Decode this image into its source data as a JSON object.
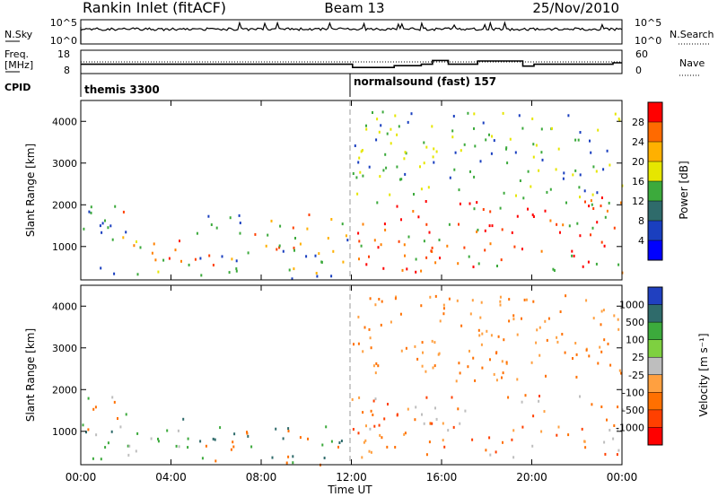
{
  "header": {
    "station": "Rankin Inlet (fitACF)",
    "beam": "Beam 13",
    "date": "25/Nov/2010"
  },
  "noise_panel": {
    "left_label": "N.Sky",
    "right_label": "N.Search",
    "ticks": [
      "10^5",
      "10^0"
    ]
  },
  "freq_panel": {
    "left_label_line1": "Freq.",
    "left_label_line2": "[MHz]",
    "left_ticks": [
      "18",
      "8"
    ],
    "right_label": "Nave",
    "right_ticks": [
      "60",
      "0"
    ],
    "freq_steps": [
      {
        "t": 0.0,
        "mhz": 12.0
      },
      {
        "t": 12.05,
        "mhz": 12.0
      },
      {
        "t": 12.05,
        "mhz": 10.6
      },
      {
        "t": 13.9,
        "mhz": 10.6
      },
      {
        "t": 13.9,
        "mhz": 11.4
      },
      {
        "t": 15.1,
        "mhz": 11.4
      },
      {
        "t": 15.1,
        "mhz": 12.0
      },
      {
        "t": 15.6,
        "mhz": 12.0
      },
      {
        "t": 15.6,
        "mhz": 13.6
      },
      {
        "t": 16.3,
        "mhz": 13.6
      },
      {
        "t": 16.3,
        "mhz": 12.0
      },
      {
        "t": 17.6,
        "mhz": 12.0
      },
      {
        "t": 17.6,
        "mhz": 13.4
      },
      {
        "t": 19.6,
        "mhz": 13.4
      },
      {
        "t": 19.6,
        "mhz": 11.2
      },
      {
        "t": 20.1,
        "mhz": 11.2
      },
      {
        "t": 20.1,
        "mhz": 12.0
      },
      {
        "t": 23.6,
        "mhz": 12.0
      },
      {
        "t": 23.6,
        "mhz": 12.6
      },
      {
        "t": 24.0,
        "mhz": 12.6
      }
    ]
  },
  "cpid": {
    "label": "CPID",
    "segments": [
      {
        "start": 0,
        "text": "themis 3300"
      },
      {
        "start": 12,
        "text": "normalsound (fast) 157"
      }
    ]
  },
  "chart_data": [
    {
      "type": "heatmap",
      "name": "power",
      "ylabel": "Slant Range [km]",
      "yticks": [
        1000,
        2000,
        3000,
        4000
      ],
      "ylim": [
        200,
        4500
      ],
      "xlim": [
        0,
        24
      ],
      "colorbar": {
        "label": "Power [dB]",
        "ticks": [
          "28",
          "24",
          "20",
          "16",
          "12",
          "8",
          "4"
        ],
        "colors": [
          "#ff0000",
          "#ff6a00",
          "#ffb000",
          "#e6e600",
          "#3caa3c",
          "#2f6b6b",
          "#1a3fbf",
          "#0000ff"
        ]
      },
      "scatter_regions": [
        {
          "t0": 0.0,
          "t1": 2.0,
          "r0": 300,
          "r1": 2000,
          "mix": [
            "#ff4000",
            "#ffb000",
            "#3caa3c",
            "#1a3fbf"
          ]
        },
        {
          "t0": 2.0,
          "t1": 4.8,
          "r0": 300,
          "r1": 1300,
          "mix": [
            "#ff2000",
            "#ff8000",
            "#e6e600",
            "#3caa3c"
          ]
        },
        {
          "t0": 5.0,
          "t1": 11.8,
          "r0": 200,
          "r1": 1800,
          "mix": [
            "#ff4000",
            "#3caa3c",
            "#1a3fbf",
            "#ffb000"
          ]
        },
        {
          "t0": 12.0,
          "t1": 24.0,
          "r0": 400,
          "r1": 2200,
          "mix": [
            "#ff0000",
            "#ff4000",
            "#ff8000",
            "#3caa3c"
          ]
        },
        {
          "t0": 12.0,
          "t1": 24.0,
          "r0": 2200,
          "r1": 4300,
          "mix": [
            "#1a3fbf",
            "#3caa3c",
            "#e6e600"
          ]
        }
      ]
    },
    {
      "type": "heatmap",
      "name": "velocity",
      "ylabel": "Slant Range [km]",
      "yticks": [
        1000,
        2000,
        3000,
        4000
      ],
      "ylim": [
        200,
        4500
      ],
      "xlim": [
        0,
        24
      ],
      "colorbar": {
        "label": "Velocity [m s⁻¹]",
        "ticks": [
          "1000",
          "500",
          "100",
          "25",
          "-25",
          "-100",
          "-500",
          "-1000"
        ],
        "colors": [
          "#2040c0",
          "#2f6b6b",
          "#3caa3c",
          "#7ed040",
          "#bebebe",
          "#ffa040",
          "#ff7000",
          "#ff4000",
          "#ff0000"
        ]
      },
      "scatter_regions": [
        {
          "t0": 0.0,
          "t1": 2.0,
          "r0": 300,
          "r1": 2000,
          "mix": [
            "#2f6b6b",
            "#3caa3c",
            "#ff7000",
            "#bebebe"
          ]
        },
        {
          "t0": 2.0,
          "t1": 4.8,
          "r0": 300,
          "r1": 1400,
          "mix": [
            "#bebebe",
            "#2f6b6b",
            "#3caa3c"
          ]
        },
        {
          "t0": 5.0,
          "t1": 11.8,
          "r0": 200,
          "r1": 1200,
          "mix": [
            "#2f6b6b",
            "#3caa3c",
            "#ff7000"
          ]
        },
        {
          "t0": 12.0,
          "t1": 24.0,
          "r0": 400,
          "r1": 1900,
          "mix": [
            "#ff7000",
            "#ff4000",
            "#ffa040",
            "#bebebe"
          ]
        },
        {
          "t0": 12.0,
          "t1": 24.0,
          "r0": 2200,
          "r1": 4300,
          "mix": [
            "#ff7000",
            "#ffa040"
          ]
        }
      ]
    }
  ],
  "x_axis": {
    "ticks": [
      "00:00",
      "04:00",
      "08:00",
      "12:00",
      "16:00",
      "20:00",
      "00:00"
    ],
    "label": "Time UT"
  }
}
